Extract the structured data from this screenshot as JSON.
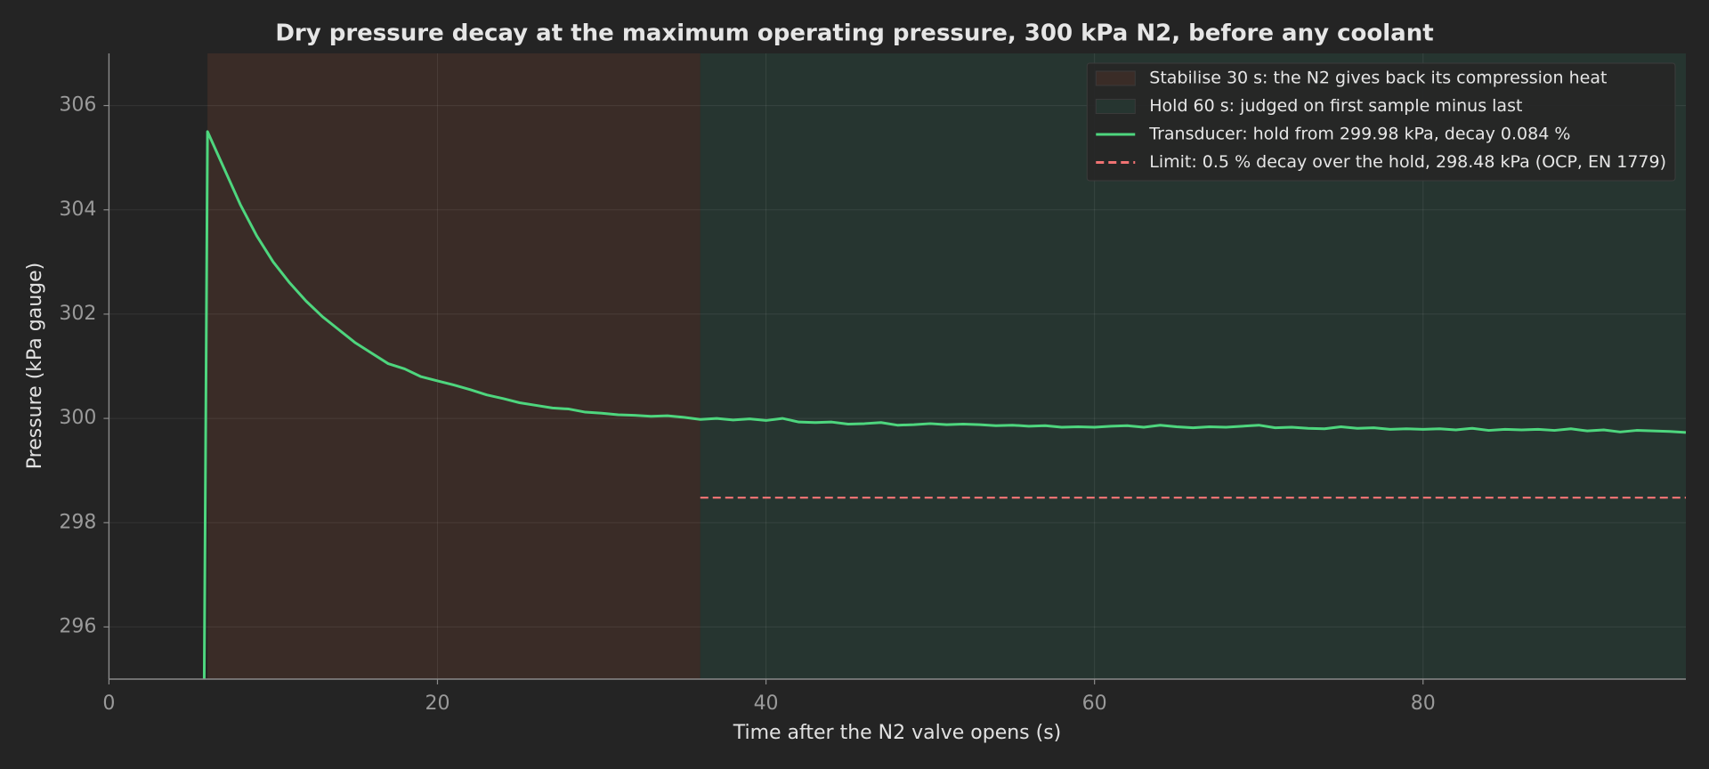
{
  "chart_data": {
    "type": "line",
    "title": "Dry pressure decay at the maximum operating pressure, 300 kPa N2, before any coolant",
    "xlabel": "Time after the N2 valve opens (s)",
    "ylabel": "Pressure (kPa gauge)",
    "xlim": [
      0,
      96
    ],
    "ylim": [
      295,
      307
    ],
    "xticks": [
      0,
      20,
      40,
      60,
      80
    ],
    "yticks": [
      296,
      298,
      300,
      302,
      304,
      306
    ],
    "grid": true,
    "legend": "upper right",
    "spans": [
      {
        "name": "Stabilise 30 s: the N2 gives back its compression heat",
        "start": 6,
        "end": 36,
        "color": "#3a2c27"
      },
      {
        "name": "Hold 60 s: judged on first sample minus last",
        "start": 36,
        "end": 96,
        "color": "#263530"
      }
    ],
    "x": [
      5.8,
      6,
      7,
      8,
      9,
      10,
      11,
      12,
      13,
      14,
      15,
      16,
      17,
      18,
      19,
      20,
      21,
      22,
      23,
      24,
      25,
      26,
      27,
      28,
      29,
      30,
      31,
      32,
      33,
      34,
      35,
      36,
      37,
      38,
      39,
      40,
      41,
      42,
      43,
      44,
      45,
      46,
      47,
      48,
      49,
      50,
      51,
      52,
      53,
      54,
      55,
      56,
      57,
      58,
      59,
      60,
      61,
      62,
      63,
      64,
      65,
      66,
      67,
      68,
      69,
      70,
      71,
      72,
      73,
      74,
      75,
      76,
      77,
      78,
      79,
      80,
      81,
      82,
      83,
      84,
      85,
      86,
      87,
      88,
      89,
      90,
      91,
      92,
      93,
      94,
      95,
      96
    ],
    "series": [
      {
        "name": "Transducer: hold from 299.98 kPa, decay 0.084 %",
        "color": "#4ed67e",
        "values": [
          295,
          305.5,
          304.8,
          304.1,
          303.5,
          303.0,
          302.6,
          302.25,
          301.95,
          301.7,
          301.45,
          301.25,
          301.05,
          300.95,
          300.8,
          300.72,
          300.64,
          300.55,
          300.45,
          300.38,
          300.3,
          300.25,
          300.2,
          300.18,
          300.12,
          300.1,
          300.07,
          300.06,
          300.04,
          300.05,
          300.02,
          299.98,
          300.0,
          299.97,
          299.99,
          299.96,
          300.0,
          299.93,
          299.92,
          299.93,
          299.89,
          299.9,
          299.92,
          299.87,
          299.88,
          299.9,
          299.88,
          299.89,
          299.88,
          299.86,
          299.87,
          299.85,
          299.86,
          299.83,
          299.84,
          299.83,
          299.85,
          299.86,
          299.83,
          299.87,
          299.84,
          299.82,
          299.84,
          299.83,
          299.85,
          299.87,
          299.82,
          299.83,
          299.81,
          299.8,
          299.84,
          299.81,
          299.82,
          299.79,
          299.8,
          299.79,
          299.8,
          299.78,
          299.81,
          299.77,
          299.79,
          299.78,
          299.79,
          299.77,
          299.8,
          299.76,
          299.78,
          299.74,
          299.77,
          299.76,
          299.75,
          299.73
        ]
      }
    ],
    "hlines": [
      {
        "name": "Limit: 0.5 % decay over the hold, 298.48 kPa (OCP, EN 1779)",
        "value": 298.48,
        "start": 36,
        "end": 96,
        "color": "#f07272",
        "style": "dashed"
      }
    ]
  }
}
